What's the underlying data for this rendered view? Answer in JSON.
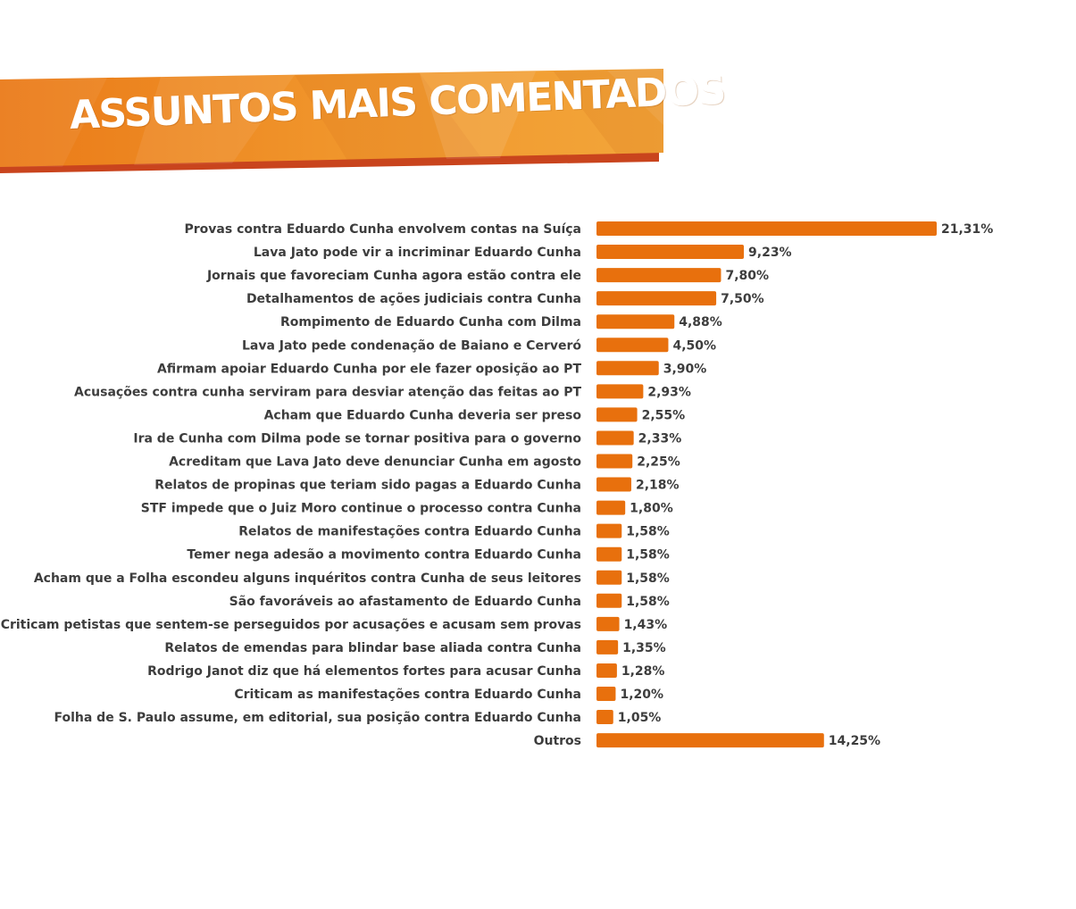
{
  "title": "ASSUNTOS MAIS COMENTADOS",
  "colors": {
    "bar": "#e8700d",
    "banner_main": "#ec7f1c",
    "banner_shadow": "#c9441d",
    "text": "#3d3d3d"
  },
  "chart_data": {
    "type": "bar",
    "orientation": "horizontal",
    "title": "ASSUNTOS MAIS COMENTADOS",
    "xlabel": "",
    "ylabel": "",
    "unit": "%",
    "xlim": [
      0,
      21.31
    ],
    "grid": false,
    "legend": "none",
    "categories": [
      "Provas contra Eduardo Cunha envolvem contas na Suíça",
      "Lava Jato pode vir a incriminar Eduardo Cunha",
      "Jornais que favoreciam Cunha agora estão contra ele",
      "Detalhamentos de ações judiciais contra Cunha",
      "Rompimento de Eduardo Cunha com Dilma",
      "Lava Jato pede condenação de Baiano e Cerveró",
      "Afirmam apoiar Eduardo Cunha por ele fazer oposição ao PT",
      "Acusações contra cunha serviram para desviar atenção das feitas ao PT",
      "Acham que Eduardo Cunha deveria ser preso",
      "Ira de Cunha com Dilma pode se tornar positiva para o governo",
      "Acreditam que Lava Jato deve denunciar Cunha em agosto",
      "Relatos de propinas que teriam sido pagas a Eduardo Cunha",
      "STF impede que o Juiz Moro continue o processo contra Cunha",
      "Relatos de manifestações contra Eduardo Cunha",
      "Temer nega adesão a movimento contra Eduardo Cunha",
      "Acham que a Folha escondeu alguns inquéritos contra Cunha de seus leitores",
      "São favoráveis ao afastamento de Eduardo Cunha",
      "Criticam petistas que sentem-se perseguidos por acusações e acusam sem provas",
      "Relatos de emendas para blindar base aliada contra Cunha",
      "Rodrigo Janot diz que há elementos fortes para acusar Cunha",
      "Criticam as manifestações contra Eduardo Cunha",
      "Folha de S. Paulo assume, em editorial, sua posição contra Eduardo Cunha",
      "Outros"
    ],
    "values": [
      21.31,
      9.23,
      7.8,
      7.5,
      4.88,
      4.5,
      3.9,
      2.93,
      2.55,
      2.33,
      2.25,
      2.18,
      1.8,
      1.58,
      1.58,
      1.58,
      1.58,
      1.43,
      1.35,
      1.28,
      1.2,
      1.05,
      14.25
    ],
    "value_labels": [
      "21,31%",
      "9,23%",
      "7,80%",
      "7,50%",
      "4,88%",
      "4,50%",
      "3,90%",
      "2,93%",
      "2,55%",
      "2,33%",
      "2,25%",
      "2,18%",
      "1,80%",
      "1,58%",
      "1,58%",
      "1,58%",
      "1,58%",
      "1,43%",
      "1,35%",
      "1,28%",
      "1,20%",
      "1,05%",
      "14,25%"
    ]
  }
}
